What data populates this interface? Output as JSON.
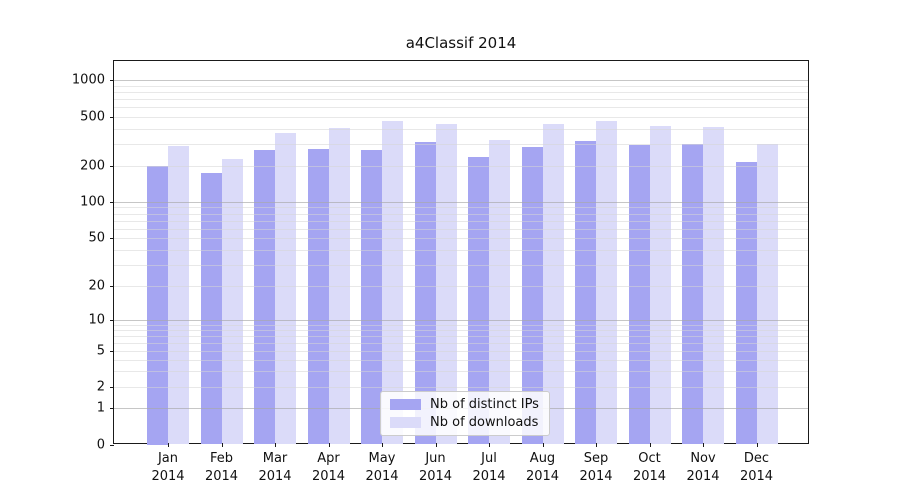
{
  "chart_data": {
    "type": "bar",
    "title": "a4Classif 2014",
    "x_months": [
      "Jan",
      "Feb",
      "Mar",
      "Apr",
      "May",
      "Jun",
      "Jul",
      "Aug",
      "Sep",
      "Oct",
      "Nov",
      "Dec"
    ],
    "x_year": "2014",
    "series": [
      {
        "name": "Nb of distinct IPs",
        "color": "#a5a5f2",
        "values": [
          200,
          173,
          270,
          274,
          267,
          312,
          234,
          284,
          318,
          293,
          299,
          213
        ]
      },
      {
        "name": "Nb of downloads",
        "color": "#dbdbf9",
        "values": [
          290,
          227,
          370,
          405,
          460,
          436,
          322,
          440,
          467,
          421,
          413,
          303
        ]
      }
    ],
    "y_scale": "symlog",
    "y_ticks": [
      0,
      1,
      2,
      5,
      10,
      20,
      50,
      100,
      200,
      500,
      1000
    ],
    "ylim": [
      0,
      1400
    ],
    "grid": "horizontal major and minor gridlines, drawn over bars",
    "legend_position": "inside plot, lower center-left",
    "xlabel": "",
    "ylabel": ""
  }
}
